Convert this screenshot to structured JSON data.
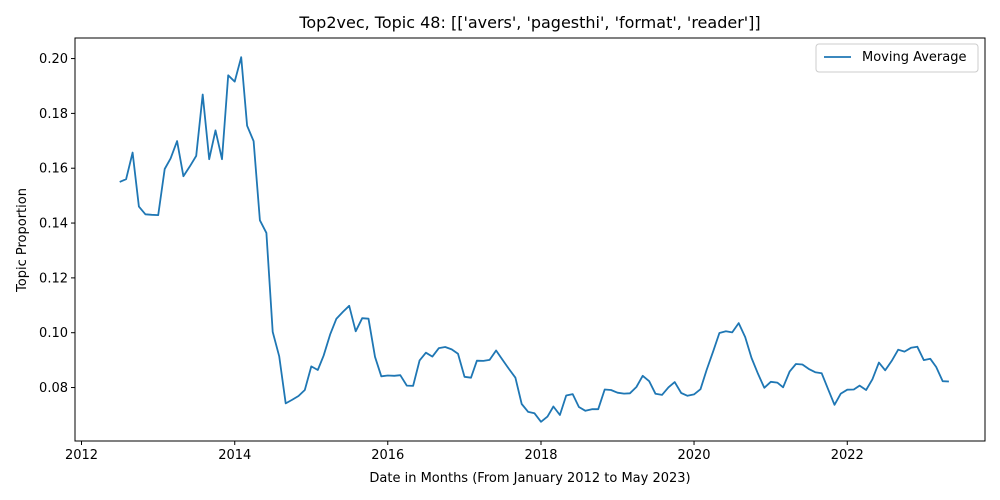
{
  "chart_data": {
    "type": "line",
    "title": "Top2vec, Topic 48: [['avers', 'pagesthi', 'format', 'reader']]",
    "xlabel": "Date in Months (From January 2012 to May 2023)",
    "ylabel": "Topic Proportion",
    "x_ticks": [
      "2012",
      "2014",
      "2016",
      "2018",
      "2020",
      "2022"
    ],
    "y_ticks": [
      "0.08",
      "0.10",
      "0.12",
      "0.14",
      "0.16",
      "0.18",
      "0.20"
    ],
    "xlim": [
      "2011-12-01",
      "2023-10-20"
    ],
    "ylim": [
      0.0605,
      0.2075
    ],
    "grid": false,
    "legend_position": "top-right",
    "color": "#1f77b4",
    "series": [
      {
        "name": "Moving Average",
        "x": [
          "2012-07",
          "2012-08",
          "2012-09",
          "2012-10",
          "2012-11",
          "2012-12",
          "2013-01",
          "2013-02",
          "2013-03",
          "2013-04",
          "2013-05",
          "2013-06",
          "2013-07",
          "2013-08",
          "2013-09",
          "2013-10",
          "2013-11",
          "2013-12",
          "2014-01",
          "2014-02",
          "2014-03",
          "2014-04",
          "2014-05",
          "2014-06",
          "2014-07",
          "2014-08",
          "2014-09",
          "2014-10",
          "2014-11",
          "2014-12",
          "2015-01",
          "2015-02",
          "2015-03",
          "2015-04",
          "2015-05",
          "2015-06",
          "2015-07",
          "2015-08",
          "2015-09",
          "2015-10",
          "2015-11",
          "2015-12",
          "2016-01",
          "2016-02",
          "2016-03",
          "2016-04",
          "2016-05",
          "2016-06",
          "2016-07",
          "2016-08",
          "2016-09",
          "2016-10",
          "2016-11",
          "2016-12",
          "2017-01",
          "2017-02",
          "2017-03",
          "2017-04",
          "2017-05",
          "2017-06",
          "2017-07",
          "2017-08",
          "2017-09",
          "2017-10",
          "2017-11",
          "2017-12",
          "2018-01",
          "2018-02",
          "2018-03",
          "2018-04",
          "2018-05",
          "2018-06",
          "2018-07",
          "2018-08",
          "2018-09",
          "2018-10",
          "2018-11",
          "2018-12",
          "2019-01",
          "2019-02",
          "2019-03",
          "2019-04",
          "2019-05",
          "2019-06",
          "2019-07",
          "2019-08",
          "2019-09",
          "2019-10",
          "2019-11",
          "2019-12",
          "2020-01",
          "2020-02",
          "2020-03",
          "2020-04",
          "2020-05",
          "2020-06",
          "2020-07",
          "2020-08",
          "2020-09",
          "2020-10",
          "2020-11",
          "2020-12",
          "2021-01",
          "2021-02",
          "2021-03",
          "2021-04",
          "2021-05",
          "2021-06",
          "2021-07",
          "2021-08",
          "2021-09",
          "2021-10",
          "2021-11",
          "2021-12",
          "2022-01",
          "2022-02",
          "2022-03",
          "2022-04",
          "2022-05",
          "2022-06",
          "2022-07",
          "2022-08",
          "2022-09",
          "2022-10",
          "2022-11",
          "2022-12",
          "2023-01",
          "2023-02",
          "2023-03",
          "2023-04",
          "2023-05"
        ],
        "y": [
          0.155,
          0.156,
          0.1657,
          0.146,
          0.1432,
          0.143,
          0.1429,
          0.1597,
          0.1636,
          0.1699,
          0.1571,
          0.1607,
          0.1645,
          0.1869,
          0.1633,
          0.1738,
          0.1633,
          0.1939,
          0.1916,
          0.2005,
          0.1755,
          0.1699,
          0.141,
          0.1364,
          0.1003,
          0.0914,
          0.0742,
          0.0755,
          0.0769,
          0.0791,
          0.0877,
          0.0864,
          0.0916,
          0.0993,
          0.1051,
          0.1076,
          0.1098,
          0.1005,
          0.1053,
          0.1051,
          0.0912,
          0.0841,
          0.0844,
          0.0843,
          0.0845,
          0.0807,
          0.0806,
          0.0899,
          0.0927,
          0.0913,
          0.0944,
          0.0948,
          0.0939,
          0.0923,
          0.0839,
          0.0836,
          0.0898,
          0.0897,
          0.0901,
          0.0935,
          0.0902,
          0.0868,
          0.0836,
          0.074,
          0.0711,
          0.0706,
          0.0675,
          0.0694,
          0.0731,
          0.07,
          0.0771,
          0.0776,
          0.0729,
          0.0715,
          0.0721,
          0.0721,
          0.0793,
          0.0791,
          0.0781,
          0.0778,
          0.0779,
          0.0802,
          0.0843,
          0.0823,
          0.0777,
          0.0773,
          0.0801,
          0.082,
          0.078,
          0.077,
          0.0775,
          0.0794,
          0.0864,
          0.0931,
          0.0999,
          0.1005,
          0.1001,
          0.1035,
          0.0984,
          0.0908,
          0.085,
          0.0799,
          0.0821,
          0.0818,
          0.0801,
          0.0858,
          0.0886,
          0.0884,
          0.0868,
          0.0856,
          0.0852,
          0.0795,
          0.0737,
          0.0778,
          0.0792,
          0.0793,
          0.0807,
          0.0791,
          0.083,
          0.0891,
          0.0863,
          0.0897,
          0.0938,
          0.0931,
          0.0945,
          0.0949,
          0.09,
          0.0905,
          0.0875,
          0.0823,
          0.0822
        ]
      }
    ]
  }
}
